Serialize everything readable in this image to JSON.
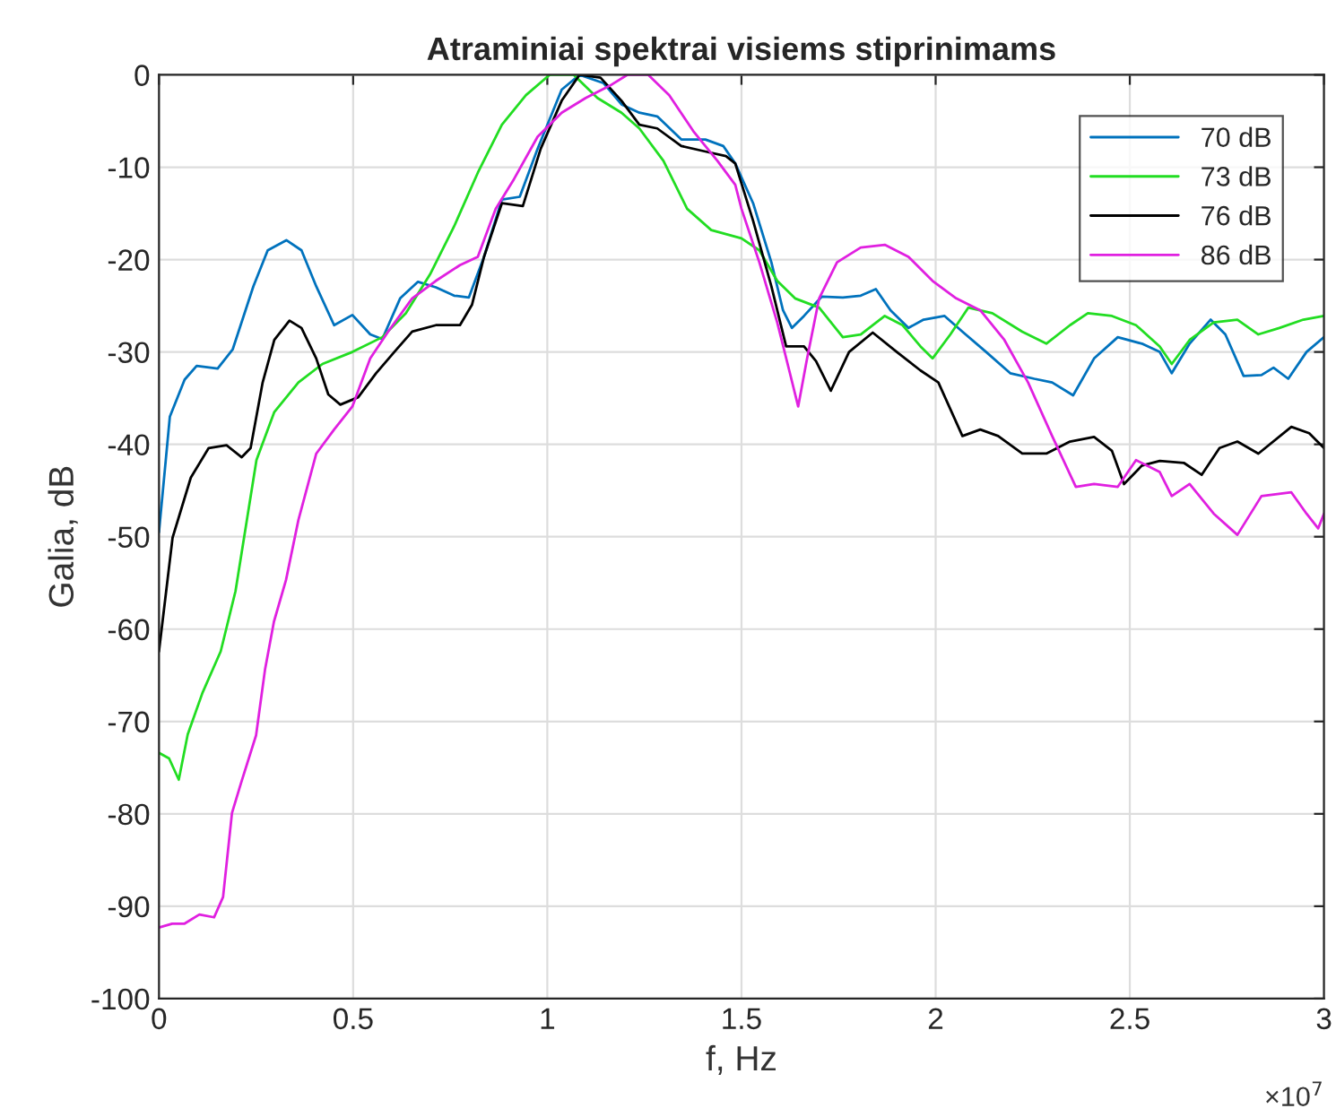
{
  "chart_data": {
    "type": "line",
    "title": "Atraminiai spektrai visiems stiprinimams",
    "xlabel": "f, Hz",
    "ylabel": "Galia, dB",
    "annotations": [
      "×10$^{7}$"
    ],
    "xlim": [
      0,
      3
    ],
    "xticks": [
      0,
      0.5,
      1,
      1.5,
      2,
      2.5,
      3
    ],
    "ylim": [
      -100,
      0
    ],
    "yticks": [
      -100,
      -90,
      -80,
      -70,
      -60,
      -50,
      -40,
      -30,
      -20,
      -10,
      0
    ],
    "grid": true,
    "legend": "top right",
    "line_style": "solid",
    "series": [
      {
        "name": "70 dB",
        "color": "#0072bd",
        "x": [
          0,
          0.028,
          0.066,
          0.097,
          0.151,
          0.19,
          0.243,
          0.28,
          0.328,
          0.367,
          0.405,
          0.451,
          0.498,
          0.544,
          0.575,
          0.621,
          0.667,
          0.713,
          0.76,
          0.798,
          0.837,
          0.883,
          0.929,
          0.975,
          1.037,
          1.083,
          1.145,
          1.191,
          1.237,
          1.283,
          1.345,
          1.407,
          1.453,
          1.484,
          1.53,
          1.577,
          1.607,
          1.63,
          1.661,
          1.707,
          1.761,
          1.807,
          1.846,
          1.884,
          1.93,
          1.969,
          2.023,
          2.069,
          2.13,
          2.192,
          2.254,
          2.3,
          2.354,
          2.408,
          2.469,
          2.531,
          2.577,
          2.608,
          2.654,
          2.708,
          2.746,
          2.793,
          2.839,
          2.87,
          2.908,
          2.955,
          3.0
        ],
        "values": [
          -49.5,
          -37,
          -33,
          -31.5,
          -31.8,
          -29.7,
          -22.9,
          -19,
          -17.9,
          -19,
          -22.9,
          -27.1,
          -26,
          -28.1,
          -28.6,
          -24.2,
          -22.4,
          -23,
          -23.9,
          -24.1,
          -19.7,
          -13.5,
          -13.2,
          -8,
          -1.6,
          0,
          -0.9,
          -3.2,
          -4.1,
          -4.5,
          -7,
          -7,
          -7.7,
          -9.6,
          -13.9,
          -20.3,
          -25.5,
          -27.4,
          -26.1,
          -24,
          -24.1,
          -23.9,
          -23.2,
          -25.5,
          -27.4,
          -26.5,
          -26.1,
          -27.8,
          -30,
          -32.3,
          -32.9,
          -33.3,
          -34.7,
          -30.7,
          -28.4,
          -29.1,
          -30,
          -32.3,
          -29.1,
          -26.5,
          -28.1,
          -32.6,
          -32.5,
          -31.7,
          -32.9,
          -30,
          -28.4
        ]
      },
      {
        "name": "73 dB",
        "color": "#22dd22",
        "x": [
          0,
          0.026,
          0.051,
          0.074,
          0.112,
          0.159,
          0.197,
          0.251,
          0.297,
          0.359,
          0.421,
          0.498,
          0.575,
          0.636,
          0.698,
          0.76,
          0.821,
          0.883,
          0.945,
          1.006,
          1.068,
          1.129,
          1.191,
          1.237,
          1.299,
          1.36,
          1.422,
          1.5,
          1.546,
          1.592,
          1.638,
          1.7,
          1.761,
          1.807,
          1.869,
          1.915,
          1.961,
          1.992,
          2.038,
          2.084,
          2.146,
          2.223,
          2.285,
          2.346,
          2.392,
          2.454,
          2.516,
          2.577,
          2.608,
          2.654,
          2.716,
          2.777,
          2.831,
          2.885,
          2.947,
          3.0
        ],
        "values": [
          -73.4,
          -74,
          -76.3,
          -71.4,
          -66.9,
          -62.4,
          -55.9,
          -41.7,
          -36.5,
          -33.3,
          -31.3,
          -30,
          -28.4,
          -25.8,
          -21.6,
          -16.4,
          -10.6,
          -5.4,
          -2.2,
          0,
          0,
          -2.5,
          -4.1,
          -5.8,
          -9.3,
          -14.5,
          -16.8,
          -17.7,
          -19,
          -22.3,
          -24.2,
          -25.2,
          -28.4,
          -28.1,
          -26.1,
          -27.1,
          -29.4,
          -30.7,
          -28.1,
          -25.2,
          -25.8,
          -27.8,
          -29.1,
          -27.1,
          -25.8,
          -26.1,
          -27.1,
          -29.4,
          -31.3,
          -28.7,
          -26.8,
          -26.5,
          -28.1,
          -27.4,
          -26.5,
          -26.1
        ]
      },
      {
        "name": "76 dB",
        "color": "#000000",
        "x": [
          0,
          0.035,
          0.082,
          0.128,
          0.174,
          0.213,
          0.236,
          0.267,
          0.297,
          0.336,
          0.367,
          0.405,
          0.436,
          0.467,
          0.513,
          0.559,
          0.606,
          0.652,
          0.713,
          0.775,
          0.806,
          0.837,
          0.883,
          0.937,
          0.983,
          1.037,
          1.083,
          1.137,
          1.191,
          1.237,
          1.283,
          1.345,
          1.407,
          1.46,
          1.484,
          1.53,
          1.577,
          1.615,
          1.661,
          1.692,
          1.73,
          1.777,
          1.838,
          1.9,
          1.961,
          2.007,
          2.069,
          2.115,
          2.161,
          2.223,
          2.285,
          2.346,
          2.408,
          2.454,
          2.485,
          2.531,
          2.577,
          2.639,
          2.685,
          2.731,
          2.777,
          2.831,
          2.916,
          2.962,
          3.0
        ],
        "values": [
          -62.4,
          -50.1,
          -43.6,
          -40.4,
          -40.1,
          -41.4,
          -40.4,
          -33.3,
          -28.7,
          -26.6,
          -27.4,
          -30.7,
          -34.6,
          -35.7,
          -34.9,
          -32.3,
          -30,
          -27.8,
          -27.1,
          -27.1,
          -24.9,
          -19.7,
          -13.9,
          -14.2,
          -8,
          -2.8,
          0,
          -0.3,
          -2.8,
          -5.4,
          -5.8,
          -7.7,
          -8.3,
          -8.8,
          -9.6,
          -15.8,
          -22.9,
          -29.4,
          -29.4,
          -31,
          -34.2,
          -30,
          -27.9,
          -30,
          -32,
          -33.3,
          -39.1,
          -38.4,
          -39.1,
          -41,
          -41,
          -39.7,
          -39.2,
          -40.7,
          -44.3,
          -42.3,
          -41.8,
          -42,
          -43.3,
          -40.4,
          -39.7,
          -41,
          -38.1,
          -38.8,
          -40.4
        ]
      },
      {
        "name": "86 dB",
        "color": "#e020e0",
        "x": [
          0,
          0.034,
          0.065,
          0.104,
          0.142,
          0.165,
          0.188,
          0.211,
          0.25,
          0.273,
          0.296,
          0.327,
          0.359,
          0.405,
          0.451,
          0.498,
          0.544,
          0.59,
          0.652,
          0.713,
          0.775,
          0.821,
          0.867,
          0.914,
          0.975,
          1.037,
          1.099,
          1.16,
          1.206,
          1.26,
          1.314,
          1.376,
          1.438,
          1.484,
          1.5,
          1.546,
          1.592,
          1.623,
          1.646,
          1.669,
          1.7,
          1.746,
          1.807,
          1.869,
          1.93,
          1.992,
          2.053,
          2.115,
          2.177,
          2.238,
          2.3,
          2.361,
          2.408,
          2.469,
          2.516,
          2.577,
          2.608,
          2.654,
          2.716,
          2.777,
          2.839,
          2.916,
          2.955,
          2.985,
          3.0
        ],
        "values": [
          -92.3,
          -91.9,
          -91.9,
          -90.9,
          -91.2,
          -89,
          -79.9,
          -76.7,
          -71.5,
          -64.4,
          -59.2,
          -54.7,
          -48.2,
          -41,
          -38.4,
          -35.9,
          -30.7,
          -27.8,
          -24.2,
          -22.3,
          -20.6,
          -19.7,
          -14.5,
          -11.3,
          -6.7,
          -4.1,
          -2.5,
          -1.2,
          0,
          0,
          -2.2,
          -6.1,
          -9.3,
          -11.9,
          -14.5,
          -20.3,
          -26.8,
          -32,
          -35.9,
          -30.7,
          -24.2,
          -20.3,
          -18.7,
          -18.4,
          -19.7,
          -22.3,
          -24.2,
          -25.5,
          -28.7,
          -33.3,
          -39.1,
          -44.6,
          -44.3,
          -44.6,
          -41.7,
          -43,
          -45.6,
          -44.3,
          -47.5,
          -49.8,
          -45.6,
          -45.2,
          -47.5,
          -49.1,
          -47.5
        ]
      }
    ]
  }
}
